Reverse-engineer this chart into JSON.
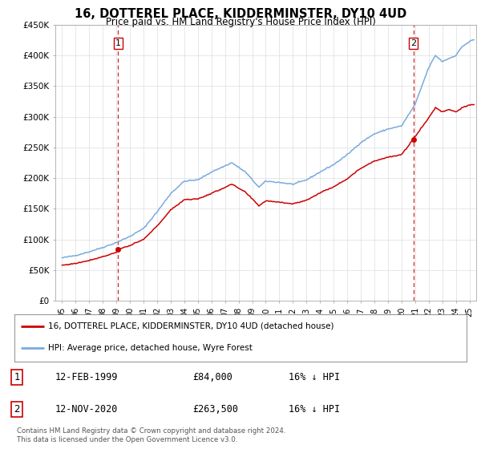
{
  "title": "16, DOTTEREL PLACE, KIDDERMINSTER, DY10 4UD",
  "subtitle": "Price paid vs. HM Land Registry's House Price Index (HPI)",
  "legend_line1": "16, DOTTEREL PLACE, KIDDERMINSTER, DY10 4UD (detached house)",
  "legend_line2": "HPI: Average price, detached house, Wyre Forest",
  "footnote": "Contains HM Land Registry data © Crown copyright and database right 2024.\nThis data is licensed under the Open Government Licence v3.0.",
  "table": [
    {
      "num": "1",
      "date": "12-FEB-1999",
      "price": "£84,000",
      "hpi": "16% ↓ HPI"
    },
    {
      "num": "2",
      "date": "12-NOV-2020",
      "price": "£263,500",
      "hpi": "16% ↓ HPI"
    }
  ],
  "sale1_x": 1999.12,
  "sale1_y": 84000,
  "sale2_x": 2020.87,
  "sale2_y": 263500,
  "line_color_red": "#cc0000",
  "line_color_blue": "#7aaadd",
  "vline_color": "#cc0000",
  "ylim": [
    0,
    450000
  ],
  "xlim_start": 1994.5,
  "xlim_end": 2025.5,
  "yticks": [
    0,
    50000,
    100000,
    150000,
    200000,
    250000,
    300000,
    350000,
    400000,
    450000
  ],
  "ytick_labels": [
    "£0",
    "£50K",
    "£100K",
    "£150K",
    "£200K",
    "£250K",
    "£300K",
    "£350K",
    "£400K",
    "£450K"
  ],
  "background_color": "#ffffff",
  "grid_color": "#dddddd",
  "hpi_anchors": [
    [
      1995.0,
      70000
    ],
    [
      1996.0,
      74000
    ],
    [
      1997.0,
      80000
    ],
    [
      1998.0,
      87000
    ],
    [
      1999.0,
      95000
    ],
    [
      2000.0,
      105000
    ],
    [
      2001.0,
      118000
    ],
    [
      2002.0,
      145000
    ],
    [
      2003.0,
      175000
    ],
    [
      2004.0,
      195000
    ],
    [
      2005.0,
      197000
    ],
    [
      2006.0,
      210000
    ],
    [
      2007.5,
      225000
    ],
    [
      2008.5,
      210000
    ],
    [
      2009.5,
      185000
    ],
    [
      2010.0,
      195000
    ],
    [
      2011.0,
      193000
    ],
    [
      2012.0,
      190000
    ],
    [
      2013.0,
      197000
    ],
    [
      2014.0,
      210000
    ],
    [
      2015.0,
      222000
    ],
    [
      2016.0,
      238000
    ],
    [
      2017.0,
      258000
    ],
    [
      2018.0,
      272000
    ],
    [
      2019.0,
      280000
    ],
    [
      2020.0,
      285000
    ],
    [
      2021.0,
      320000
    ],
    [
      2022.0,
      380000
    ],
    [
      2022.5,
      400000
    ],
    [
      2023.0,
      390000
    ],
    [
      2023.5,
      395000
    ],
    [
      2024.0,
      400000
    ],
    [
      2024.5,
      415000
    ],
    [
      2025.2,
      425000
    ]
  ],
  "red_anchors": [
    [
      1995.0,
      58000
    ],
    [
      1996.0,
      61000
    ],
    [
      1997.0,
      66000
    ],
    [
      1998.0,
      72000
    ],
    [
      1999.0,
      79000
    ],
    [
      1999.12,
      84000
    ],
    [
      2000.0,
      90000
    ],
    [
      2001.0,
      100000
    ],
    [
      2002.0,
      122000
    ],
    [
      2003.0,
      148000
    ],
    [
      2004.0,
      165000
    ],
    [
      2005.0,
      166000
    ],
    [
      2006.0,
      175000
    ],
    [
      2007.5,
      190000
    ],
    [
      2008.5,
      177000
    ],
    [
      2009.5,
      155000
    ],
    [
      2010.0,
      163000
    ],
    [
      2011.0,
      161000
    ],
    [
      2012.0,
      158000
    ],
    [
      2013.0,
      164000
    ],
    [
      2014.0,
      176000
    ],
    [
      2015.0,
      186000
    ],
    [
      2016.0,
      199000
    ],
    [
      2017.0,
      216000
    ],
    [
      2018.0,
      228000
    ],
    [
      2019.0,
      234000
    ],
    [
      2020.0,
      238000
    ],
    [
      2020.87,
      263500
    ],
    [
      2021.0,
      268000
    ],
    [
      2022.0,
      298000
    ],
    [
      2022.5,
      315000
    ],
    [
      2023.0,
      308000
    ],
    [
      2023.5,
      312000
    ],
    [
      2024.0,
      308000
    ],
    [
      2024.5,
      315000
    ],
    [
      2025.2,
      320000
    ]
  ]
}
